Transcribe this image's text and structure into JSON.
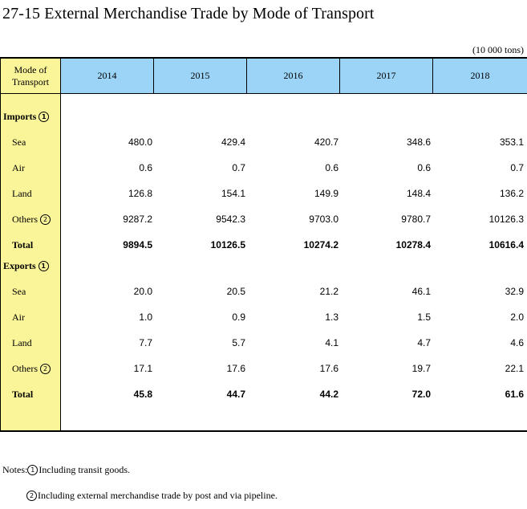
{
  "title": "27-15  External Merchandise Trade by Mode of Transport",
  "unit": "(10 000 tons)",
  "header": {
    "stub_line1": "Mode of",
    "stub_line2": "Transport",
    "years": [
      "2014",
      "2015",
      "2016",
      "2017",
      "2018"
    ]
  },
  "imports": {
    "heading": "Imports",
    "marker": "1",
    "rows": [
      {
        "label": "Sea",
        "values": [
          "480.0",
          "429.4",
          "420.7",
          "348.6",
          "353.1"
        ]
      },
      {
        "label": "Air",
        "values": [
          "0.6",
          "0.7",
          "0.6",
          "0.6",
          "0.7"
        ]
      },
      {
        "label": "Land",
        "values": [
          "126.8",
          "154.1",
          "149.9",
          "148.4",
          "136.2"
        ]
      },
      {
        "label": "Others",
        "marker": "2",
        "values": [
          "9287.2",
          "9542.3",
          "9703.0",
          "9780.7",
          "10126.3"
        ]
      }
    ],
    "total": {
      "label": "Total",
      "values": [
        "9894.5",
        "10126.5",
        "10274.2",
        "10278.4",
        "10616.4"
      ]
    }
  },
  "exports": {
    "heading": "Exports",
    "marker": "1",
    "rows": [
      {
        "label": "Sea",
        "values": [
          "20.0",
          "20.5",
          "21.2",
          "46.1",
          "32.9"
        ]
      },
      {
        "label": "Air",
        "values": [
          "1.0",
          "0.9",
          "1.3",
          "1.5",
          "2.0"
        ]
      },
      {
        "label": "Land",
        "values": [
          "7.7",
          "5.7",
          "4.1",
          "4.7",
          "4.6"
        ]
      },
      {
        "label": "Others",
        "marker": "2",
        "values": [
          "17.1",
          "17.6",
          "17.6",
          "19.7",
          "22.1"
        ]
      }
    ],
    "total": {
      "label": "Total",
      "values": [
        "45.8",
        "44.7",
        "44.2",
        "72.0",
        "61.6"
      ]
    }
  },
  "notes": {
    "prefix": "Notes:",
    "note1_marker": "1",
    "note1": "Including transit goods.",
    "note2_marker": "2",
    "note2": "Including external merchandise trade by post and via pipeline."
  },
  "colors": {
    "stub_bg": "#fbf59a",
    "header_bg": "#9bd4f7"
  }
}
